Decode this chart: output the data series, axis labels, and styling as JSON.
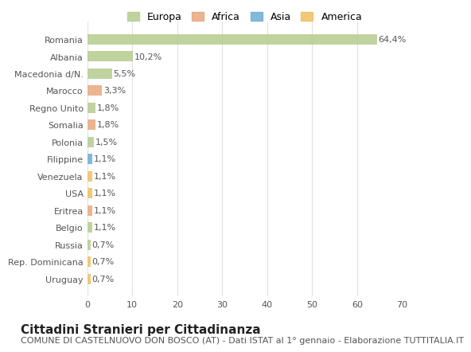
{
  "categories": [
    "Romania",
    "Albania",
    "Macedonia d/N.",
    "Marocco",
    "Regno Unito",
    "Somalia",
    "Polonia",
    "Filippine",
    "Venezuela",
    "USA",
    "Eritrea",
    "Belgio",
    "Russia",
    "Rep. Dominicana",
    "Uruguay"
  ],
  "values": [
    64.4,
    10.2,
    5.5,
    3.3,
    1.8,
    1.8,
    1.5,
    1.1,
    1.1,
    1.1,
    1.1,
    1.1,
    0.7,
    0.7,
    0.7
  ],
  "labels": [
    "64,4%",
    "10,2%",
    "5,5%",
    "3,3%",
    "1,8%",
    "1,8%",
    "1,5%",
    "1,1%",
    "1,1%",
    "1,1%",
    "1,1%",
    "1,1%",
    "0,7%",
    "0,7%",
    "0,7%"
  ],
  "colors": [
    "#b5cc8e",
    "#b5cc8e",
    "#b5cc8e",
    "#e8a87c",
    "#b5cc8e",
    "#e8a87c",
    "#b5cc8e",
    "#6baed6",
    "#f0c060",
    "#f0c060",
    "#e8a87c",
    "#b5cc8e",
    "#b5cc8e",
    "#f0c060",
    "#f0c060"
  ],
  "legend_labels": [
    "Europa",
    "Africa",
    "Asia",
    "America"
  ],
  "legend_colors": [
    "#b5cc8e",
    "#e8a87c",
    "#6baed6",
    "#f0c060"
  ],
  "title": "Cittadini Stranieri per Cittadinanza",
  "subtitle": "COMUNE DI CASTELNUOVO DON BOSCO (AT) - Dati ISTAT al 1° gennaio - Elaborazione TUTTITALIA.IT",
  "xlim": [
    0,
    70
  ],
  "xticks": [
    0,
    10,
    20,
    30,
    40,
    50,
    60,
    70
  ],
  "bg_color": "#ffffff",
  "grid_color": "#e0e0e0",
  "bar_height": 0.6,
  "title_fontsize": 11,
  "subtitle_fontsize": 8,
  "label_fontsize": 8,
  "tick_fontsize": 8,
  "legend_fontsize": 9
}
